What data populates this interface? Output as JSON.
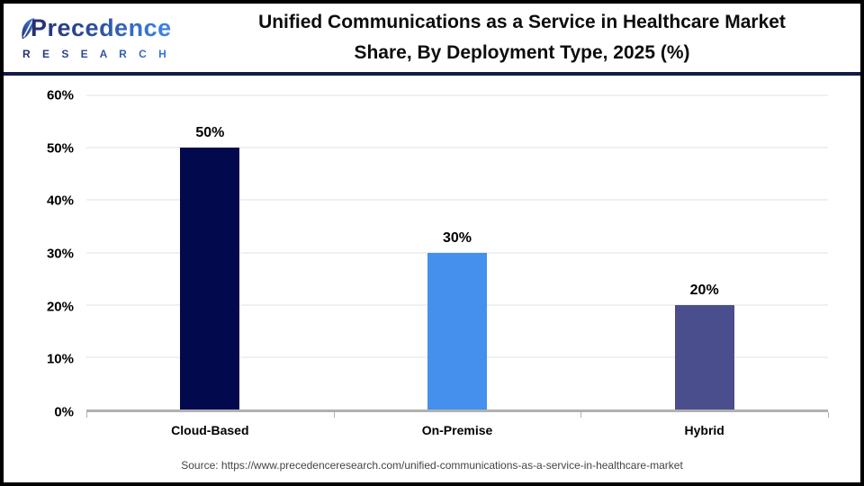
{
  "header": {
    "logo": {
      "brand_word": "Precedence",
      "brand_sub": "R E S E A R C H",
      "leaf_icon": "leaf-icon",
      "brand_color_start": "#252e6d",
      "brand_color_end": "#3d87ea"
    },
    "title_line1": "Unified Communications as a Service in Healthcare Market",
    "title_line2": "Share, By Deployment Type, 2025 (%)"
  },
  "chart_data": {
    "type": "bar",
    "title": "Unified Communications as a Service in Healthcare Market Share, By Deployment Type, 2025 (%)",
    "categories": [
      "Cloud-Based",
      "On-Premise",
      "Hybrid"
    ],
    "values": [
      50,
      30,
      20
    ],
    "value_labels": [
      "50%",
      "30%",
      "20%"
    ],
    "bar_colors": [
      "#020a4d",
      "#4490ec",
      "#4a4e8c"
    ],
    "ylim": [
      0,
      60
    ],
    "yticks": [
      0,
      10,
      20,
      30,
      40,
      50,
      60
    ],
    "ytick_labels": [
      "0%",
      "10%",
      "20%",
      "30%",
      "40%",
      "50%",
      "60%"
    ],
    "xlabel": "",
    "ylabel": "",
    "grid": "horizontal",
    "legend": "none"
  },
  "footer": {
    "source": "Source: https://www.precedenceresearch.com/unified-communications-as-a-service-in-healthcare-market"
  },
  "colors": {
    "frame_border": "#000000",
    "header_separator": "#131a45",
    "gridline": "#f0f0f0",
    "axis_line": "#b0b0b0",
    "title_text": "#0d0d0d"
  }
}
